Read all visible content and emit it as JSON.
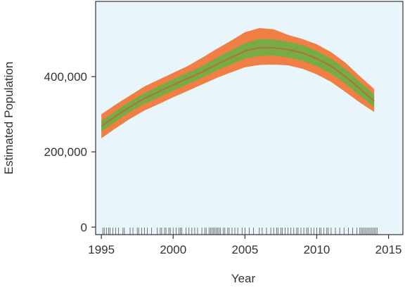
{
  "chart_data": {
    "type": "area",
    "xlabel": "Year",
    "ylabel": "Estimated Population",
    "xlim": [
      1994.6,
      2016.0
    ],
    "ylim": [
      -20000,
      600000
    ],
    "x_ticks": [
      1995,
      2000,
      2005,
      2010,
      2015
    ],
    "x_tick_labels": [
      "1995",
      "2000",
      "2005",
      "2010",
      "2015"
    ],
    "y_ticks": [
      0,
      200000,
      400000
    ],
    "y_tick_labels": [
      "0",
      "200,000",
      "400,000"
    ],
    "grid": false,
    "legend": "none",
    "colors": {
      "background": "#e8f6fb",
      "outer_band": "#f07f45",
      "inner_band": "#76ac41",
      "median_line": "#b07040",
      "rug": "#555555",
      "axis": "#333333"
    },
    "x": [
      1995,
      1996,
      1997,
      1998,
      1999,
      2000,
      2001,
      2002,
      2003,
      2004,
      2005,
      2006,
      2007,
      2008,
      2009,
      2010,
      2011,
      2012,
      2013,
      2014
    ],
    "series": [
      {
        "role": "median",
        "values": [
          268000,
          295000,
          320000,
          342000,
          360000,
          378000,
          395000,
          412000,
          432000,
          450000,
          468000,
          477000,
          477000,
          472000,
          463000,
          448000,
          428000,
          400000,
          368000,
          335000
        ]
      },
      {
        "role": "inner_lower",
        "values": [
          254000,
          281000,
          306000,
          328000,
          345000,
          363000,
          380000,
          397000,
          416000,
          432000,
          448000,
          455000,
          456000,
          451000,
          442000,
          428000,
          408000,
          381000,
          350000,
          319000
        ]
      },
      {
        "role": "inner_upper",
        "values": [
          282000,
          309000,
          334000,
          356000,
          375000,
          393000,
          410000,
          428000,
          449000,
          469000,
          489000,
          500000,
          499000,
          493000,
          484000,
          468000,
          448000,
          420000,
          386000,
          352000
        ]
      },
      {
        "role": "outer_lower",
        "values": [
          236000,
          263000,
          288000,
          310000,
          327000,
          345000,
          362000,
          379000,
          396000,
          411000,
          425000,
          431000,
          432000,
          430000,
          421000,
          406000,
          386000,
          359000,
          331000,
          306000
        ]
      },
      {
        "role": "outer_upper",
        "values": [
          300000,
          326000,
          350000,
          374000,
          392000,
          410000,
          428000,
          450000,
          473000,
          495000,
          518000,
          529000,
          526000,
          511000,
          500000,
          486000,
          465000,
          437000,
          401000,
          367000
        ]
      }
    ],
    "rug_x": [
      1995.1,
      1995.2,
      1995.35,
      1995.5,
      1995.6,
      1995.8,
      1996.0,
      1996.2,
      1996.5,
      1996.6,
      1997.0,
      1997.2,
      1997.5,
      1997.6,
      1997.8,
      1998.0,
      1998.2,
      1998.5,
      1998.9,
      1999.1,
      1999.2,
      1999.4,
      1999.5,
      1999.7,
      1999.8,
      2000.0,
      2000.2,
      2000.4,
      2000.5,
      2000.6,
      2000.9,
      2001.1,
      2001.3,
      2001.5,
      2001.7,
      2002.0,
      2002.2,
      2002.3,
      2002.5,
      2002.6,
      2002.7,
      2002.8,
      2002.9,
      2003.0,
      2003.1,
      2003.2,
      2003.3,
      2003.5,
      2003.6,
      2003.8,
      2003.9,
      2004.1,
      2004.3,
      2004.5,
      2004.8,
      2005.0,
      2005.3,
      2005.6,
      2006.0,
      2006.2,
      2006.5,
      2006.8,
      2007.0,
      2007.2,
      2007.3,
      2007.5,
      2007.6,
      2007.8,
      2008.0,
      2008.2,
      2008.4,
      2008.6,
      2008.7,
      2008.9,
      2009.1,
      2009.3,
      2009.4,
      2009.6,
      2009.8,
      2010.0,
      2010.2,
      2010.3,
      2010.5,
      2010.7,
      2010.8,
      2011.0,
      2011.3,
      2011.6,
      2011.9,
      2012.2,
      2012.5,
      2012.8,
      2013.0,
      2013.1,
      2013.2,
      2013.3,
      2013.4,
      2013.5,
      2013.6,
      2013.7,
      2013.8,
      2013.9,
      2014.0,
      2014.1,
      2014.2
    ]
  }
}
